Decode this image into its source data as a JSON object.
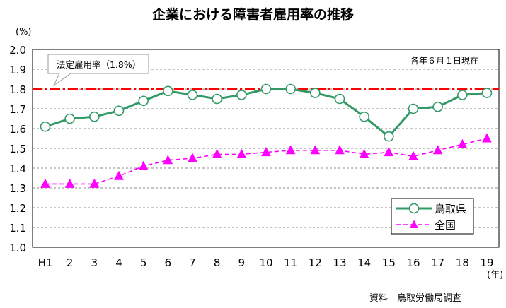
{
  "chart_data": {
    "type": "line",
    "title": "企業における障害者雇用率の推移",
    "y_unit_label": "(%)",
    "x_unit_label": "(年)",
    "as_of_note": "各年６月１日現在",
    "source": "資料　鳥取労働局調査",
    "categories": [
      "H1",
      "2",
      "3",
      "4",
      "5",
      "6",
      "7",
      "8",
      "9",
      "10",
      "11",
      "12",
      "13",
      "14",
      "15",
      "16",
      "17",
      "18",
      "19"
    ],
    "ylim": [
      1.0,
      2.0
    ],
    "y_ticks": [
      "1.0",
      "1.1",
      "1.2",
      "1.3",
      "1.4",
      "1.5",
      "1.6",
      "1.7",
      "1.8",
      "1.9",
      "2.0"
    ],
    "grid": true,
    "legend_position": "bottom-right",
    "reference_line": {
      "label": "法定雇用率（1.8%）",
      "value": 1.8,
      "color": "#ff0000"
    },
    "series": [
      {
        "name": "鳥取県",
        "color": "#339966",
        "marker": "circle",
        "line_style": "solid",
        "values": [
          1.61,
          1.65,
          1.66,
          1.69,
          1.74,
          1.79,
          1.77,
          1.75,
          1.77,
          1.8,
          1.8,
          1.78,
          1.75,
          1.66,
          1.56,
          1.7,
          1.71,
          1.77,
          1.78
        ]
      },
      {
        "name": "全国",
        "color": "#ff00ff",
        "marker": "triangle",
        "line_style": "dashed",
        "values": [
          1.32,
          1.32,
          1.32,
          1.36,
          1.41,
          1.44,
          1.45,
          1.47,
          1.47,
          1.48,
          1.49,
          1.49,
          1.49,
          1.47,
          1.48,
          1.46,
          1.49,
          1.52,
          1.55
        ]
      }
    ]
  }
}
